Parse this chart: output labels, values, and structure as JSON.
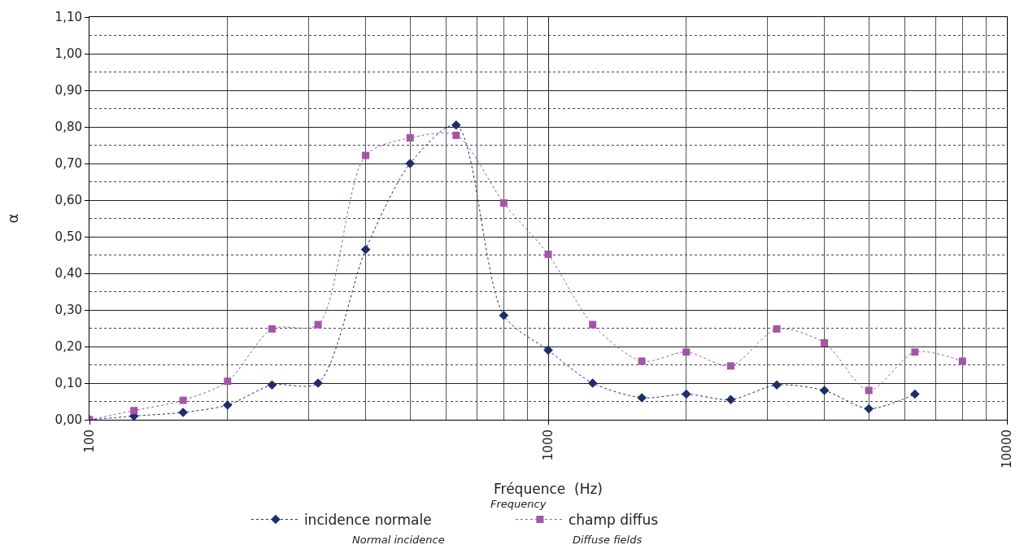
{
  "chart_data": {
    "type": "line",
    "xlabel": "Fréquence  (Hz)",
    "ylabel": "α",
    "x": [
      100,
      125,
      160,
      200,
      250,
      315,
      400,
      500,
      630,
      800,
      1000,
      1250,
      1600,
      2000,
      2500,
      3150,
      4000,
      5000,
      6300,
      8000
    ],
    "series": [
      {
        "name": "incidence normale",
        "color": "#1f2d6b",
        "marker": "diamond",
        "values": [
          0.0,
          0.01,
          0.02,
          0.04,
          0.095,
          0.1,
          0.465,
          0.7,
          0.805,
          0.285,
          0.19,
          0.1,
          0.06,
          0.07,
          0.055,
          0.095,
          0.08,
          0.03,
          0.07,
          null
        ]
      },
      {
        "name": "champ diffus",
        "color": "#a356a8",
        "marker": "square",
        "values": [
          0.0,
          0.025,
          0.053,
          0.105,
          0.248,
          0.26,
          0.722,
          0.77,
          0.777,
          0.592,
          0.452,
          0.26,
          0.16,
          0.185,
          0.147,
          0.248,
          0.21,
          0.08,
          0.185,
          0.16
        ]
      }
    ],
    "log": "x",
    "xlim": [
      100,
      10000
    ],
    "xticks": [
      100,
      1000,
      10000
    ],
    "ylim": [
      0,
      1.1
    ],
    "yticks": [
      {
        "value": 0,
        "label": "0,00"
      },
      {
        "value": 0.1,
        "label": "0,10"
      },
      {
        "value": 0.2,
        "label": "0,20"
      },
      {
        "value": 0.3,
        "label": "0,30"
      },
      {
        "value": 0.4,
        "label": "0,40"
      },
      {
        "value": 0.5,
        "label": "0,50"
      },
      {
        "value": 0.6,
        "label": "0,60"
      },
      {
        "value": 0.7,
        "label": "0,70"
      },
      {
        "value": 0.8,
        "label": "0,80"
      },
      {
        "value": 0.9,
        "label": "0,90"
      },
      {
        "value": 1.0,
        "label": "1,00"
      },
      {
        "value": 1.1,
        "label": "1,10"
      }
    ],
    "grid": true,
    "legend": "bottom",
    "line_style": "dotted",
    "annotations": [
      "Frequency",
      "Normal incidence",
      "Diffuse fields"
    ]
  }
}
